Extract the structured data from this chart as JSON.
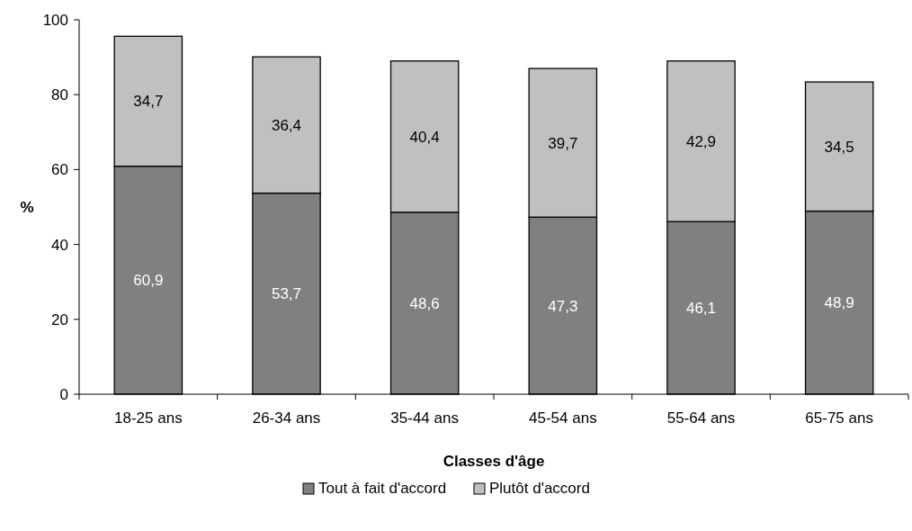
{
  "chart_data": {
    "type": "bar",
    "stacked": true,
    "xlabel": "Classes d'âge",
    "ylabel": "%",
    "categories": [
      "18-25 ans",
      "26-34 ans",
      "35-44 ans",
      "45-54 ans",
      "55-64 ans",
      "65-75 ans"
    ],
    "series": [
      {
        "name": "Tout à fait d'accord",
        "color": "#808080",
        "values": [
          60.9,
          53.7,
          48.6,
          47.3,
          46.1,
          48.9
        ],
        "value_labels": [
          "60,9",
          "53,7",
          "48,6",
          "47,3",
          "46,1",
          "48,9"
        ]
      },
      {
        "name": "Plutôt d'accord",
        "color": "#c0c0c0",
        "values": [
          34.7,
          36.4,
          40.4,
          39.7,
          42.9,
          34.5
        ],
        "value_labels": [
          "34,7",
          "36,4",
          "40,4",
          "39,7",
          "42,9",
          "34,5"
        ]
      }
    ],
    "ylim": [
      0,
      100
    ],
    "yticks": [
      0,
      20,
      40,
      60,
      80,
      100
    ],
    "grid": false,
    "legend": "bottom"
  }
}
